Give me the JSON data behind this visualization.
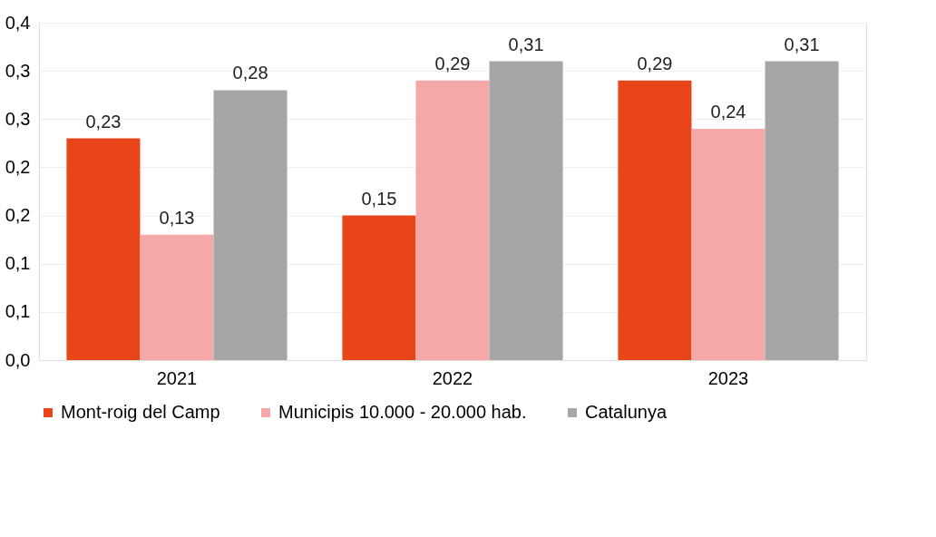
{
  "chart_data": {
    "type": "bar",
    "categories": [
      "2021",
      "2022",
      "2023"
    ],
    "series": [
      {
        "name": "Mont-roig del Camp",
        "color": "#e8461a",
        "values": [
          0.23,
          0.15,
          0.29
        ],
        "value_labels": [
          "0,23",
          "0,15",
          "0,29"
        ]
      },
      {
        "name": "Municipis 10.000 - 20.000 hab.",
        "color": "#f4a9a8",
        "values": [
          0.13,
          0.29,
          0.24
        ],
        "value_labels": [
          "0,13",
          "0,29",
          "0,24"
        ]
      },
      {
        "name": "Catalunya",
        "color": "#a6a6a6",
        "values": [
          0.28,
          0.31,
          0.31
        ],
        "value_labels": [
          "0,28",
          "0,31",
          "0,31"
        ]
      }
    ],
    "ylim": [
      0,
      0.35
    ],
    "yticks": [
      {
        "value": 0,
        "label": "0,0"
      },
      {
        "value": 0.05,
        "label": "0,1"
      },
      {
        "value": 0.1,
        "label": "0,1"
      },
      {
        "value": 0.15,
        "label": "0,2"
      },
      {
        "value": 0.2,
        "label": "0,2"
      },
      {
        "value": 0.25,
        "label": "0,3"
      },
      {
        "value": 0.3,
        "label": "0,3"
      },
      {
        "value": 0.35,
        "label": "0,4"
      }
    ],
    "grid": "y",
    "legend": "bottom"
  }
}
